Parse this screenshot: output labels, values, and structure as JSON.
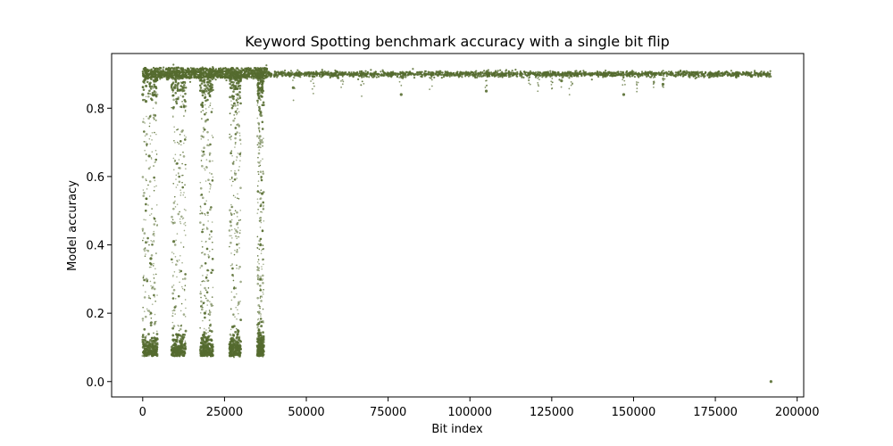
{
  "chart_data": {
    "type": "scatter",
    "title": "Keyword Spotting benchmark accuracy with a single bit flip",
    "xlabel": "Bit index",
    "ylabel": "Model accuracy",
    "xlim": [
      -9500,
      202000
    ],
    "ylim": [
      -0.045,
      0.96
    ],
    "xticks": [
      0,
      25000,
      50000,
      75000,
      100000,
      125000,
      150000,
      175000,
      200000
    ],
    "xtick_labels": [
      "0",
      "25000",
      "50000",
      "75000",
      "100000",
      "125000",
      "150000",
      "175000",
      "200000"
    ],
    "yticks": [
      0.0,
      0.2,
      0.4,
      0.6,
      0.8
    ],
    "ytick_labels": [
      "0.0",
      "0.2",
      "0.4",
      "0.6",
      "0.8"
    ],
    "grid": false,
    "marker_color": "#556b2f",
    "baseline_accuracy": 0.9,
    "x_max_bit_index": 192000,
    "sensitive_bands": [
      {
        "x_start": 0,
        "x_end": 4500
      },
      {
        "x_start": 8800,
        "x_end": 13200
      },
      {
        "x_start": 17500,
        "x_end": 21500
      },
      {
        "x_start": 26500,
        "x_end": 30000
      },
      {
        "x_start": 35000,
        "x_end": 37000
      }
    ],
    "series": [
      {
        "values_description_points": [
          {
            "x": 0,
            "y": 0.84
          },
          {
            "x": 1000,
            "y": 0.82
          },
          {
            "x": 2000,
            "y": 0.66
          },
          {
            "x": 2500,
            "y": 0.36
          },
          {
            "x": 3000,
            "y": 0.1
          },
          {
            "x": 3500,
            "y": 0.08
          },
          {
            "x": 4000,
            "y": 0.08
          },
          {
            "x": 9500,
            "y": 0.41
          },
          {
            "x": 10000,
            "y": 0.1
          },
          {
            "x": 11000,
            "y": 0.08
          },
          {
            "x": 12000,
            "y": 0.08
          },
          {
            "x": 12500,
            "y": 0.86
          },
          {
            "x": 18000,
            "y": 0.81
          },
          {
            "x": 19000,
            "y": 0.2
          },
          {
            "x": 20000,
            "y": 0.08
          },
          {
            "x": 21000,
            "y": 0.08
          },
          {
            "x": 27500,
            "y": 0.16
          },
          {
            "x": 28500,
            "y": 0.09
          },
          {
            "x": 29000,
            "y": 0.84
          },
          {
            "x": 35500,
            "y": 0.17
          },
          {
            "x": 36000,
            "y": 0.3
          },
          {
            "x": 36000,
            "y": 0.4
          },
          {
            "x": 36500,
            "y": 0.55
          },
          {
            "x": 36500,
            "y": 0.86
          },
          {
            "x": 46000,
            "y": 0.86
          },
          {
            "x": 79000,
            "y": 0.84
          },
          {
            "x": 105000,
            "y": 0.85
          },
          {
            "x": 128000,
            "y": 0.88
          },
          {
            "x": 147000,
            "y": 0.84
          },
          {
            "x": 159000,
            "y": 0.87
          },
          {
            "x": 192000,
            "y": 0.0
          }
        ]
      }
    ]
  }
}
